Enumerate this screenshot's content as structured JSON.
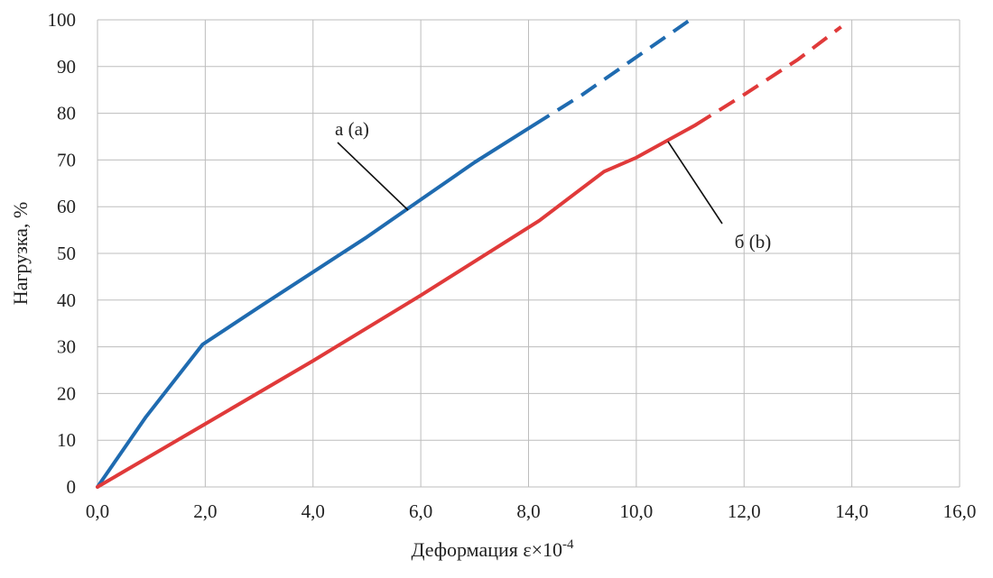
{
  "chart_data": {
    "type": "line",
    "xlabel": "Деформация ε×10",
    "xlabel_exp": "-4",
    "ylabel": "Нагрузка, %",
    "xlim": [
      0,
      16
    ],
    "ylim": [
      0,
      100
    ],
    "x_ticks": [
      "0,0",
      "2,0",
      "4,0",
      "6,0",
      "8,0",
      "10,0",
      "12,0",
      "14,0",
      "16,0"
    ],
    "x_tick_values": [
      0,
      2,
      4,
      6,
      8,
      10,
      12,
      14,
      16
    ],
    "y_ticks": [
      "0",
      "10",
      "20",
      "30",
      "40",
      "50",
      "60",
      "70",
      "80",
      "90",
      "100"
    ],
    "y_tick_values": [
      0,
      10,
      20,
      30,
      40,
      50,
      60,
      70,
      80,
      90,
      100
    ],
    "grid": true,
    "series": [
      {
        "name": "а (a)",
        "color": "#1f6bb0",
        "solid": [
          [
            0,
            0
          ],
          [
            0.9,
            15
          ],
          [
            1.95,
            30.5
          ],
          [
            3,
            38.5
          ],
          [
            4,
            46
          ],
          [
            5,
            53.5
          ],
          [
            6,
            61.5
          ],
          [
            7,
            69.5
          ],
          [
            8.1,
            77.5
          ]
        ],
        "dashed": [
          [
            8.1,
            77.5
          ],
          [
            9,
            84
          ],
          [
            10,
            92
          ],
          [
            11,
            100
          ]
        ]
      },
      {
        "name": "б (b)",
        "color": "#e03a3a",
        "solid": [
          [
            0,
            0
          ],
          [
            2,
            13.5
          ],
          [
            4,
            27
          ],
          [
            6,
            41
          ],
          [
            8.2,
            57
          ],
          [
            9.4,
            67.5
          ],
          [
            10,
            70.5
          ],
          [
            11.1,
            77.5
          ]
        ],
        "dashed": [
          [
            11.1,
            77.5
          ],
          [
            12,
            84
          ],
          [
            13,
            91.5
          ],
          [
            13.8,
            98.5
          ]
        ]
      }
    ],
    "annotations": [
      {
        "text": "а (a)",
        "series": 0
      },
      {
        "text": "б (b)",
        "series": 1
      }
    ]
  }
}
